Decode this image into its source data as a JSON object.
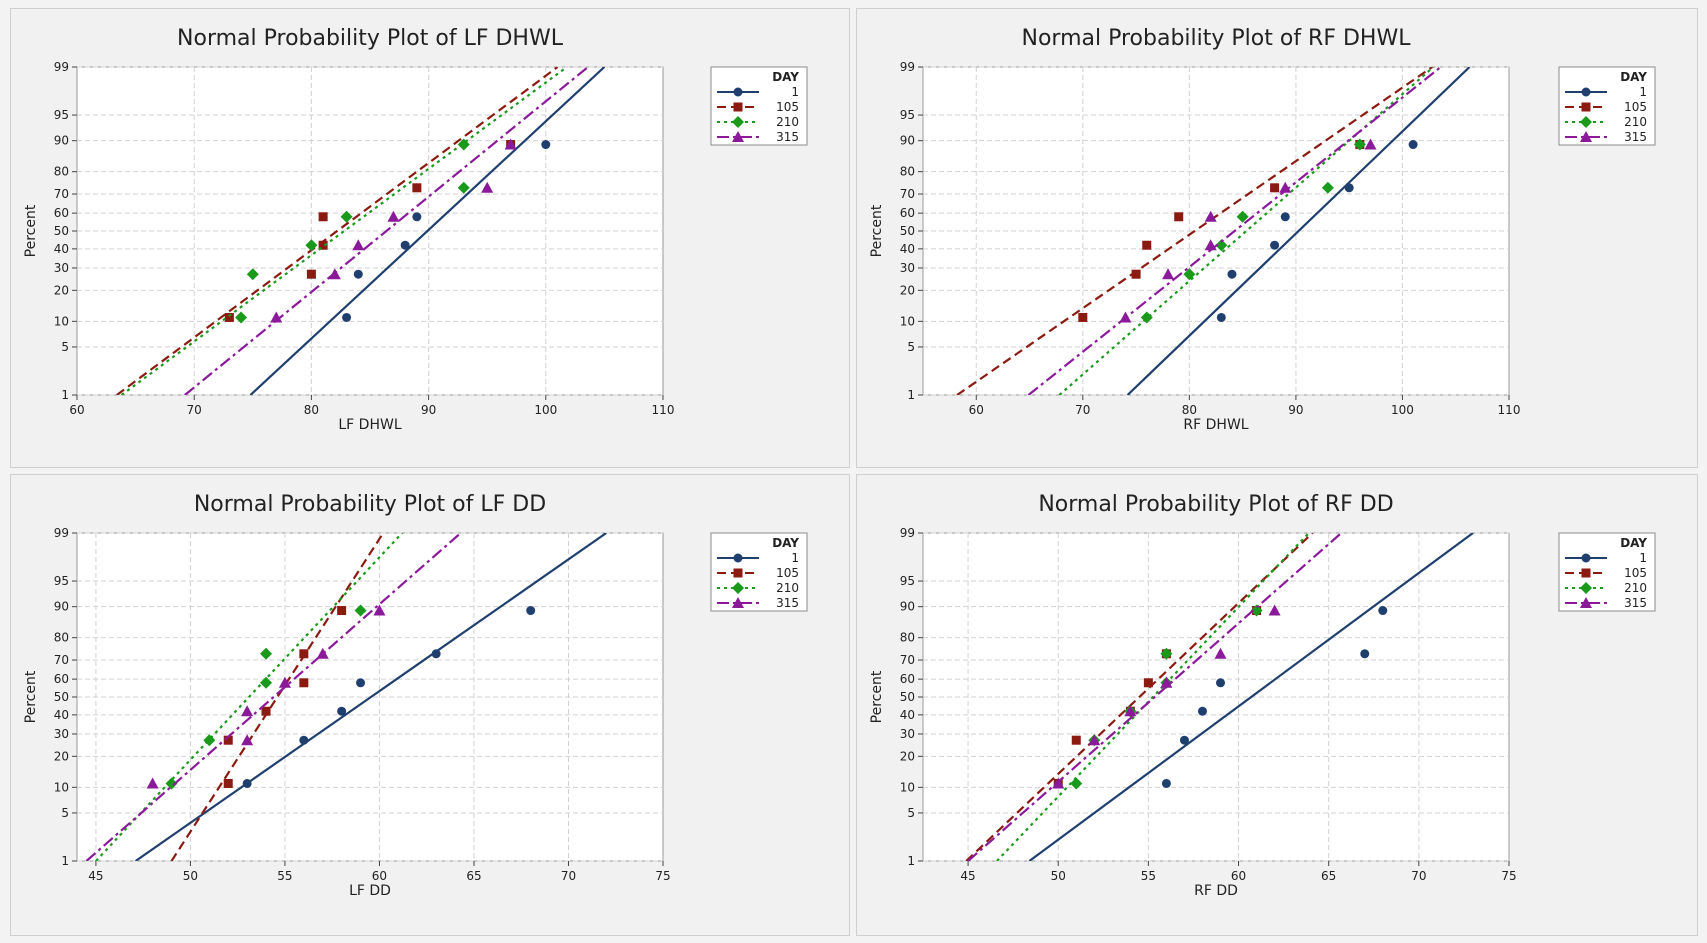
{
  "legend": {
    "title": "DAY",
    "entries": [
      "1",
      "105",
      "210",
      "315"
    ],
    "colors": [
      "#1f3f6e",
      "#8b1a10",
      "#1a9a1a",
      "#8b1a9b"
    ],
    "styles": [
      "solid",
      "dashed",
      "dotted",
      "dashdot"
    ],
    "markers": [
      "circle",
      "square",
      "diamond",
      "triangle"
    ]
  },
  "chart_data": [
    {
      "type": "scatter",
      "subtype": "normal-probability-plot",
      "title": "Normal Probability Plot of LF DHWL",
      "xlabel": "LF DHWL",
      "ylabel": "Percent",
      "xlim": [
        60,
        110
      ],
      "xticks": [
        60,
        70,
        80,
        90,
        100,
        110
      ],
      "yticks": [
        1,
        5,
        10,
        20,
        30,
        40,
        50,
        60,
        70,
        80,
        90,
        95,
        99
      ],
      "grid": true,
      "legend_position": "top-right",
      "series": [
        {
          "name": "1",
          "points": [
            [
              83,
              11
            ],
            [
              84,
              27
            ],
            [
              88,
              42
            ],
            [
              89,
              58
            ],
            [
              100,
              89
            ]
          ],
          "fit": [
            [
              74.8,
              1
            ],
            [
              105,
              99
            ]
          ]
        },
        {
          "name": "105",
          "points": [
            [
              73,
              11
            ],
            [
              80,
              27
            ],
            [
              81,
              42
            ],
            [
              81,
              58
            ],
            [
              89,
              73
            ],
            [
              97,
              89
            ]
          ],
          "fit": [
            [
              63.4,
              1
            ],
            [
              101,
              99
            ]
          ]
        },
        {
          "name": "210",
          "points": [
            [
              74,
              11
            ],
            [
              75,
              27
            ],
            [
              80,
              42
            ],
            [
              83,
              58
            ],
            [
              93,
              73
            ],
            [
              93,
              89
            ]
          ],
          "fit": [
            [
              63.8,
              1
            ],
            [
              101.8,
              99
            ]
          ]
        },
        {
          "name": "315",
          "points": [
            [
              77,
              11
            ],
            [
              82,
              27
            ],
            [
              84,
              42
            ],
            [
              87,
              58
            ],
            [
              95,
              73
            ],
            [
              97,
              89
            ]
          ],
          "fit": [
            [
              69.2,
              1
            ],
            [
              103.6,
              99
            ]
          ]
        }
      ]
    },
    {
      "type": "scatter",
      "subtype": "normal-probability-plot",
      "title": "Normal Probability Plot of RF DHWL",
      "xlabel": "RF DHWL",
      "ylabel": "Percent",
      "xlim": [
        55,
        110
      ],
      "xticks": [
        60,
        70,
        80,
        90,
        100,
        110
      ],
      "yticks": [
        1,
        5,
        10,
        20,
        30,
        40,
        50,
        60,
        70,
        80,
        90,
        95,
        99
      ],
      "grid": true,
      "legend_position": "top-right",
      "series": [
        {
          "name": "1",
          "points": [
            [
              83,
              11
            ],
            [
              84,
              27
            ],
            [
              88,
              42
            ],
            [
              89,
              58
            ],
            [
              95,
              73
            ],
            [
              101,
              89
            ]
          ],
          "fit": [
            [
              74.2,
              1
            ],
            [
              106.3,
              99
            ]
          ]
        },
        {
          "name": "105",
          "points": [
            [
              70,
              11
            ],
            [
              75,
              27
            ],
            [
              76,
              42
            ],
            [
              79,
              58
            ],
            [
              88,
              73
            ],
            [
              96,
              89
            ]
          ],
          "fit": [
            [
              58.2,
              1
            ],
            [
              102.8,
              99
            ]
          ]
        },
        {
          "name": "210",
          "points": [
            [
              76,
              11
            ],
            [
              80,
              27
            ],
            [
              83,
              42
            ],
            [
              85,
              58
            ],
            [
              93,
              73
            ],
            [
              96,
              89
            ]
          ],
          "fit": [
            [
              67.8,
              1
            ],
            [
              102.9,
              99
            ]
          ]
        },
        {
          "name": "315",
          "points": [
            [
              74,
              11
            ],
            [
              78,
              27
            ],
            [
              82,
              42
            ],
            [
              82,
              58
            ],
            [
              89,
              73
            ],
            [
              97,
              89
            ]
          ],
          "fit": [
            [
              64.9,
              1
            ],
            [
              103.6,
              99
            ]
          ]
        }
      ]
    },
    {
      "type": "scatter",
      "subtype": "normal-probability-plot",
      "title": "Normal Probability Plot of LF DD",
      "xlabel": "LF DD",
      "ylabel": "Percent",
      "xlim": [
        44,
        75
      ],
      "xticks": [
        45,
        50,
        55,
        60,
        65,
        70,
        75
      ],
      "yticks": [
        1,
        5,
        10,
        20,
        30,
        40,
        50,
        60,
        70,
        80,
        90,
        95,
        99
      ],
      "grid": true,
      "legend_position": "top-right",
      "series": [
        {
          "name": "1",
          "points": [
            [
              53,
              11
            ],
            [
              56,
              27
            ],
            [
              58,
              42
            ],
            [
              59,
              58
            ],
            [
              63,
              73
            ],
            [
              68,
              89
            ]
          ],
          "fit": [
            [
              47.1,
              1
            ],
            [
              72,
              99
            ]
          ]
        },
        {
          "name": "105",
          "points": [
            [
              52,
              11
            ],
            [
              52,
              27
            ],
            [
              54,
              42
            ],
            [
              56,
              58
            ],
            [
              56,
              73
            ],
            [
              58,
              89
            ]
          ],
          "fit": [
            [
              49,
              1
            ],
            [
              60.2,
              99
            ]
          ]
        },
        {
          "name": "210",
          "points": [
            [
              49,
              11
            ],
            [
              51,
              27
            ],
            [
              54,
              58
            ],
            [
              54,
              73
            ],
            [
              59,
              89
            ]
          ],
          "fit": [
            [
              45,
              1
            ],
            [
              61.2,
              99
            ]
          ]
        },
        {
          "name": "315",
          "points": [
            [
              48,
              11
            ],
            [
              53,
              27
            ],
            [
              53,
              42
            ],
            [
              55,
              58
            ],
            [
              57,
              73
            ],
            [
              60,
              89
            ]
          ],
          "fit": [
            [
              44.5,
              1
            ],
            [
              64.3,
              99
            ]
          ]
        }
      ]
    },
    {
      "type": "scatter",
      "subtype": "normal-probability-plot",
      "title": "Normal Probability Plot of RF DD",
      "xlabel": "RF DD",
      "ylabel": "Percent",
      "xlim": [
        42.5,
        75
      ],
      "xticks": [
        45,
        50,
        55,
        60,
        65,
        70,
        75
      ],
      "yticks": [
        1,
        5,
        10,
        20,
        30,
        40,
        50,
        60,
        70,
        80,
        90,
        95,
        99
      ],
      "grid": true,
      "legend_position": "top-right",
      "series": [
        {
          "name": "1",
          "points": [
            [
              56,
              11
            ],
            [
              57,
              27
            ],
            [
              58,
              42
            ],
            [
              59,
              58
            ],
            [
              67,
              73
            ],
            [
              68,
              89
            ]
          ],
          "fit": [
            [
              48.4,
              1
            ],
            [
              73,
              99
            ]
          ]
        },
        {
          "name": "105",
          "points": [
            [
              50,
              11
            ],
            [
              51,
              27
            ],
            [
              54,
              42
            ],
            [
              55,
              58
            ],
            [
              56,
              73
            ],
            [
              61,
              89
            ]
          ],
          "fit": [
            [
              44.9,
              1
            ],
            [
              64.1,
              99
            ]
          ]
        },
        {
          "name": "210",
          "points": [
            [
              51,
              11
            ],
            [
              52,
              27
            ],
            [
              54,
              42
            ],
            [
              56,
              58
            ],
            [
              56,
              73
            ],
            [
              61,
              89
            ]
          ],
          "fit": [
            [
              46.6,
              1
            ],
            [
              63.9,
              99
            ]
          ]
        },
        {
          "name": "315",
          "points": [
            [
              50,
              11
            ],
            [
              52,
              27
            ],
            [
              54,
              42
            ],
            [
              56,
              58
            ],
            [
              59,
              73
            ],
            [
              62,
              89
            ]
          ],
          "fit": [
            [
              45,
              1
            ],
            [
              65.7,
              99
            ]
          ]
        }
      ]
    }
  ]
}
